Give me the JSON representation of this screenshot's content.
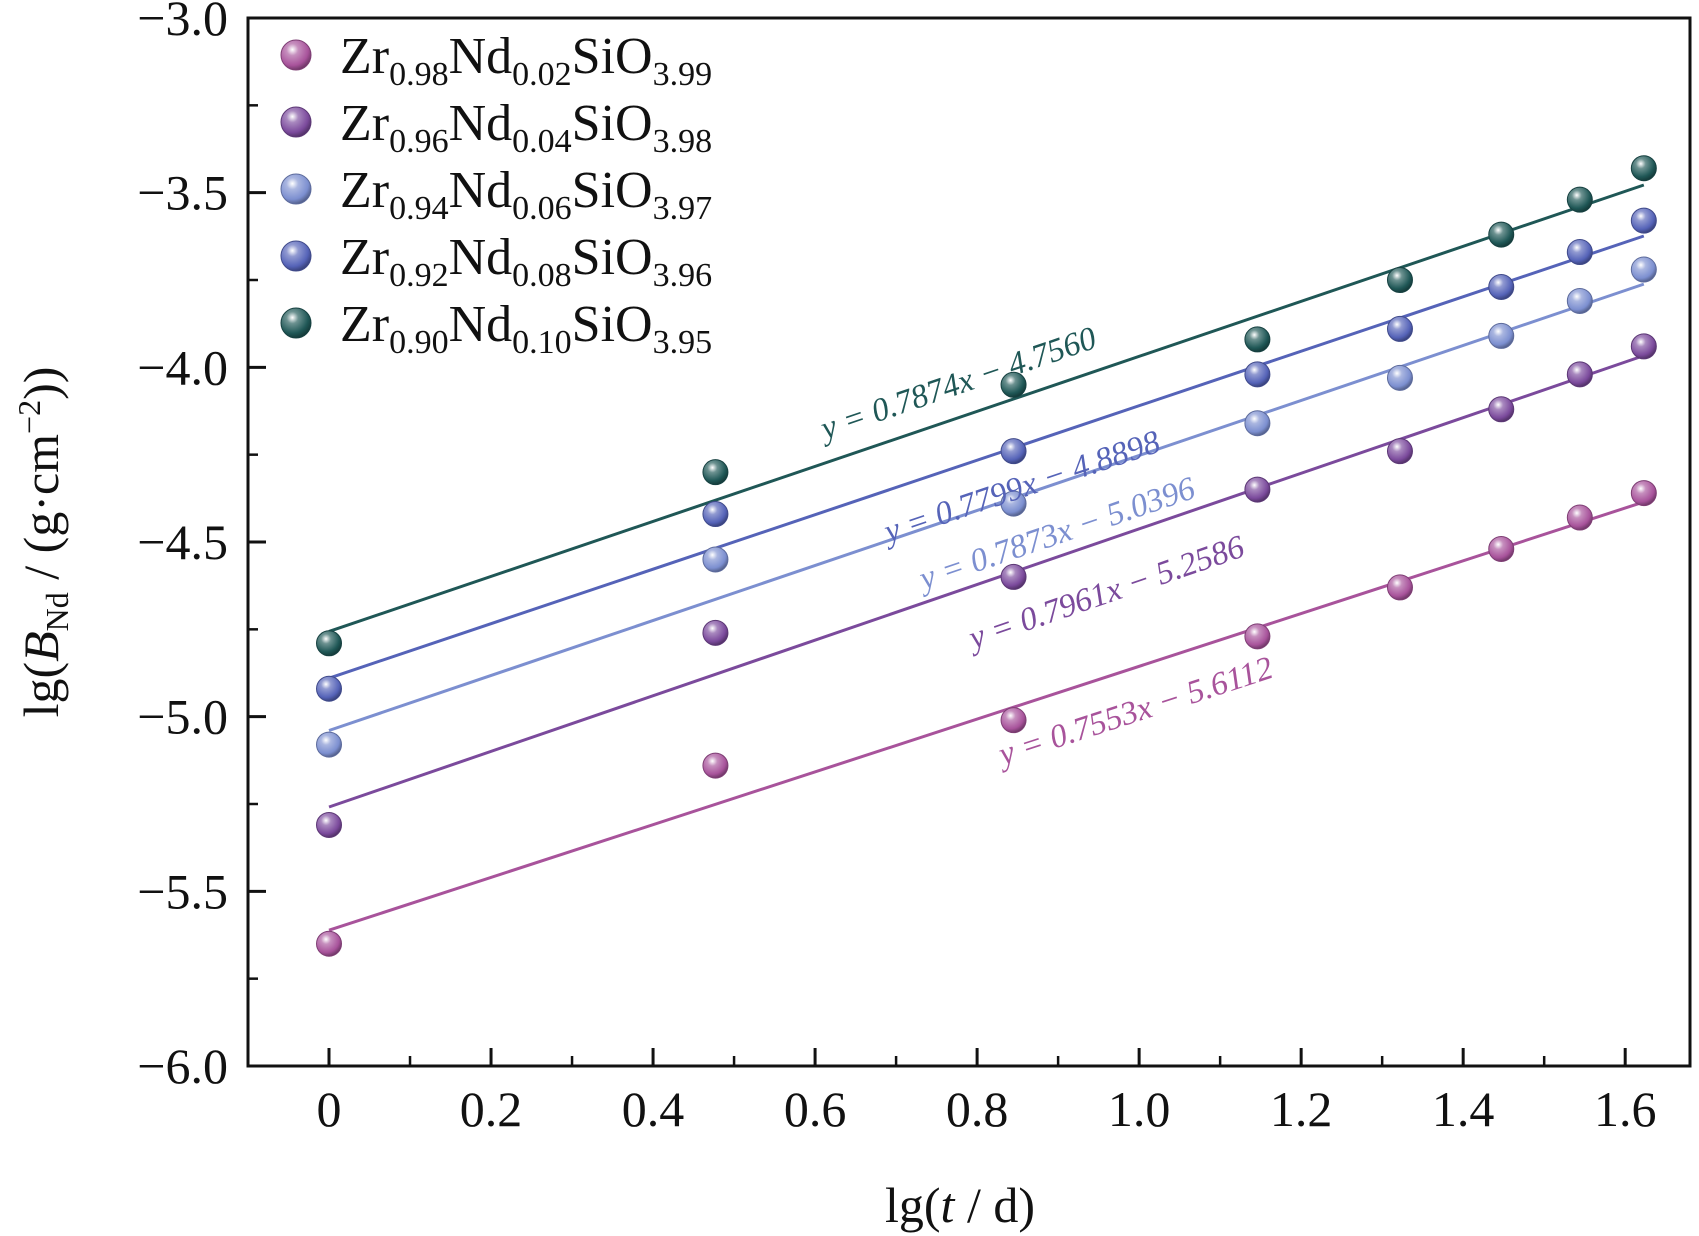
{
  "chart_data": {
    "type": "scatter",
    "xlabel": "lg(t / d)",
    "ylabel": "lg(B_Nd / (g·cm^−2))",
    "xlim": [
      -0.1,
      1.68
    ],
    "ylim": [
      -6.0,
      -3.0
    ],
    "xticks": [
      0,
      0.2,
      0.4,
      0.6,
      0.8,
      1.0,
      1.2,
      1.4,
      1.6
    ],
    "xtick_labels": [
      "0",
      "0.2",
      "0.4",
      "0.6",
      "0.8",
      "1.0",
      "1.2",
      "1.4",
      "1.6"
    ],
    "yticks": [
      -3.0,
      -3.5,
      -4.0,
      -4.5,
      -5.0,
      -5.5,
      -6.0
    ],
    "ytick_labels": [
      "−3.0",
      "−3.5",
      "−4.0",
      "−4.5",
      "−5.0",
      "−5.5",
      "−6.0"
    ],
    "grid": false,
    "legend_position": "top-left",
    "x": [
      0,
      0.477,
      0.845,
      1.146,
      1.322,
      1.447,
      1.544,
      1.623
    ],
    "series": [
      {
        "name": "Zr0.98Nd0.02SiO3.99",
        "name_parts": [
          "Zr",
          "0.98",
          "Nd",
          "0.02",
          "SiO",
          "3.99"
        ],
        "color": "#a8539b",
        "y": [
          -5.65,
          -5.14,
          -5.01,
          -4.77,
          -4.63,
          -4.52,
          -4.43,
          -4.36
        ],
        "fit": {
          "slope": 0.7553,
          "intercept": -5.6112
        },
        "equation": "y = 0.7553x − 5.6112"
      },
      {
        "name": "Zr0.96Nd0.04SiO3.98",
        "name_parts": [
          "Zr",
          "0.96",
          "Nd",
          "0.04",
          "SiO",
          "3.98"
        ],
        "color": "#7b4a9c",
        "y": [
          -5.31,
          -4.76,
          -4.6,
          -4.35,
          -4.24,
          -4.12,
          -4.02,
          -3.94
        ],
        "fit": {
          "slope": 0.7961,
          "intercept": -5.2586
        },
        "equation": "y = 0.7961x − 5.2586"
      },
      {
        "name": "Zr0.94Nd0.06SiO3.97",
        "name_parts": [
          "Zr",
          "0.94",
          "Nd",
          "0.06",
          "SiO",
          "3.97"
        ],
        "color": "#7c8fd0",
        "y": [
          -5.08,
          -4.55,
          -4.39,
          -4.16,
          -4.03,
          -3.91,
          -3.81,
          -3.72
        ],
        "fit": {
          "slope": 0.7873,
          "intercept": -5.0396
        },
        "equation": "y = 0.7873x − 5.0396"
      },
      {
        "name": "Zr0.92Nd0.08SiO3.96",
        "name_parts": [
          "Zr",
          "0.92",
          "Nd",
          "0.08",
          "SiO",
          "3.96"
        ],
        "color": "#5563b8",
        "y": [
          -4.92,
          -4.42,
          -4.24,
          -4.02,
          -3.89,
          -3.77,
          -3.67,
          -3.58
        ],
        "fit": {
          "slope": 0.7799,
          "intercept": -4.8898
        },
        "equation": "y = 0.7799x − 4.8898"
      },
      {
        "name": "Zr0.90Nd0.10SiO3.95",
        "name_parts": [
          "Zr",
          "0.90",
          "Nd",
          "0.10",
          "SiO",
          "3.95"
        ],
        "color": "#1f5756",
        "y": [
          -4.79,
          -4.3,
          -4.05,
          -3.92,
          -3.75,
          -3.62,
          -3.52,
          -3.43
        ],
        "fit": {
          "slope": 0.7874,
          "intercept": -4.756
        },
        "equation": "y = 0.7874x − 4.7560"
      }
    ]
  }
}
